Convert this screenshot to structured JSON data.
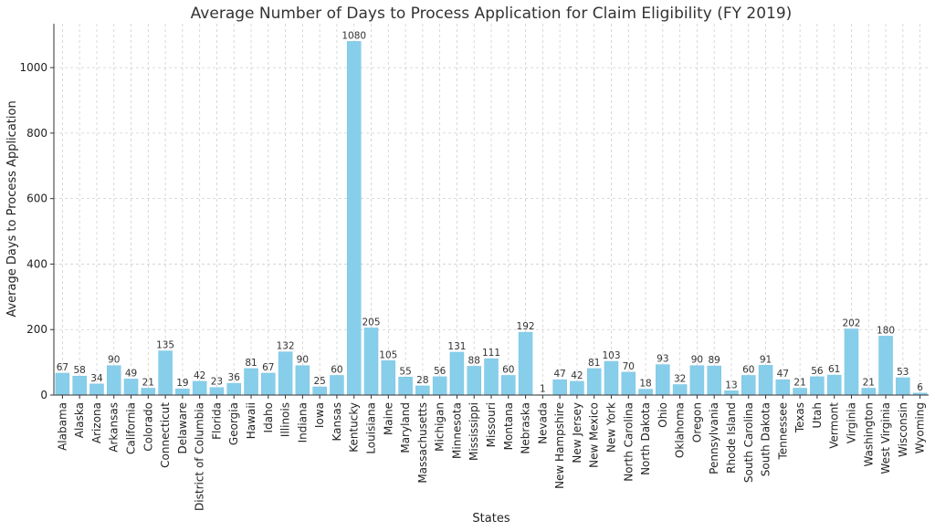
{
  "chart_data": {
    "type": "bar",
    "title": "Average Number of Days to Process Application for Claim Eligibility (FY 2019)",
    "xlabel": "States",
    "ylabel": "Average Days to Process Application",
    "categories": [
      "Alabama",
      "Alaska",
      "Arizona",
      "Arkansas",
      "California",
      "Colorado",
      "Connecticut",
      "Delaware",
      "District of Columbia",
      "Florida",
      "Georgia",
      "Hawaii",
      "Idaho",
      "Illinois",
      "Indiana",
      "Iowa",
      "Kansas",
      "Kentucky",
      "Louisiana",
      "Maine",
      "Maryland",
      "Massachusetts",
      "Michigan",
      "Minnesota",
      "Mississippi",
      "Missouri",
      "Montana",
      "Nebraska",
      "Nevada",
      "New Hampshire",
      "New Jersey",
      "New Mexico",
      "New York",
      "North Carolina",
      "North Dakota",
      "Ohio",
      "Oklahoma",
      "Oregon",
      "Pennsylvania",
      "Rhode Island",
      "South Carolina",
      "South Dakota",
      "Tennessee",
      "Texas",
      "Utah",
      "Vermont",
      "Virginia",
      "Washington",
      "West Virginia",
      "Wisconsin",
      "Wyoming"
    ],
    "values": [
      67,
      58,
      34,
      90,
      49,
      21,
      135,
      19,
      42,
      23,
      36,
      81,
      67,
      132,
      90,
      25,
      60,
      1080,
      205,
      105,
      55,
      28,
      56,
      131,
      88,
      111,
      60,
      192,
      1,
      47,
      42,
      81,
      103,
      70,
      18,
      93,
      32,
      90,
      89,
      13,
      60,
      91,
      47,
      21,
      56,
      61,
      202,
      21,
      180,
      53,
      6
    ],
    "yticks": [
      0,
      200,
      400,
      600,
      800,
      1000
    ],
    "ylim": [
      0,
      1134
    ],
    "grid": true,
    "colors": {
      "bar": "#87ceeb",
      "bar_edge": "#7cc3e0"
    }
  }
}
